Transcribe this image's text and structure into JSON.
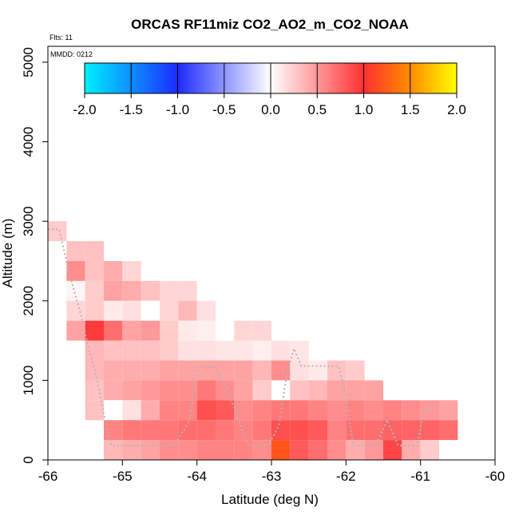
{
  "chart_data": {
    "type": "heatmap",
    "title": "ORCAS RF11miz CO2_AO2_m_CO2_NOAA",
    "flights_label": "Flts: 11",
    "date_label": "MMDD: 0212",
    "xlabel": "Latitude (deg N)",
    "ylabel": "Altitude (m)",
    "xlim": [
      -66,
      -60
    ],
    "ylim": [
      0,
      5200
    ],
    "xticks": [
      -66,
      -65,
      -64,
      -63,
      -62,
      -61,
      -60
    ],
    "yticks": [
      0,
      1000,
      2000,
      3000,
      4000,
      5000
    ],
    "colorbar": {
      "range": [
        -2.0,
        2.0
      ],
      "ticks": [
        "-2.0",
        "-1.5",
        "-1.0",
        "-0.5",
        "0.0",
        "0.5",
        "1.0",
        "1.5",
        "2.0"
      ],
      "stops": [
        {
          "v": -2.0,
          "color": "#00f0ff"
        },
        {
          "v": -1.0,
          "color": "#1c2bff"
        },
        {
          "v": 0.0,
          "color": "#ffffff"
        },
        {
          "v": 1.0,
          "color": "#ff3030"
        },
        {
          "v": 1.5,
          "color": "#ff8c00"
        },
        {
          "v": 2.0,
          "color": "#ffff00"
        }
      ]
    },
    "cell_size": {
      "lat": 0.25,
      "alt": 250
    },
    "rows": [
      {
        "alt": 2750,
        "lat_start": -66.0,
        "values": [
          0.25
        ]
      },
      {
        "alt": 2500,
        "lat_start": -65.75,
        "values": [
          0.3,
          0.3
        ]
      },
      {
        "alt": 2250,
        "lat_start": -65.75,
        "values": [
          0.55,
          0.3,
          0.4,
          0.2
        ]
      },
      {
        "alt": 2000,
        "lat_start": -65.75,
        "values": [
          0.05,
          0.25,
          0.45,
          0.4,
          0.3,
          0.2,
          0.2
        ]
      },
      {
        "alt": 1750,
        "lat_start": -65.75,
        "values": [
          0.2,
          0.25,
          0.1,
          0.15,
          0.0,
          0.2,
          0.35,
          0.15
        ]
      },
      {
        "alt": 1500,
        "lat_start": -65.75,
        "values": [
          0.45,
          0.95,
          0.7,
          0.45,
          0.5,
          0.25,
          0.1,
          0.08,
          0.0,
          0.2,
          0.2
        ]
      },
      {
        "alt": 1250,
        "lat_start": -65.5,
        "values": [
          0.35,
          0.3,
          0.3,
          0.3,
          0.25,
          0.15,
          0.15,
          0.12,
          0.12,
          0.08,
          0.15,
          0.12
        ]
      },
      {
        "alt": 1000,
        "lat_start": -65.5,
        "values": [
          0.35,
          0.4,
          0.4,
          0.4,
          0.45,
          0.45,
          0.45,
          0.45,
          0.45,
          0.35,
          0.55,
          0.15,
          0.1,
          0.3,
          0.25
        ]
      },
      {
        "alt": 750,
        "lat_start": -65.5,
        "values": [
          0.3,
          0.4,
          0.45,
          0.5,
          0.55,
          0.55,
          0.65,
          0.55,
          0.45,
          0.25,
          0.0,
          0.3,
          0.35,
          0.45,
          0.45,
          0.45
        ]
      },
      {
        "alt": 500,
        "lat_start": -65.5,
        "values": [
          0.3,
          0.0,
          0.15,
          0.4,
          0.6,
          0.6,
          0.85,
          0.8,
          0.55,
          0.6,
          0.65,
          0.65,
          0.6,
          0.55,
          0.6,
          0.55,
          0.6,
          0.55,
          0.5,
          0.45
        ]
      },
      {
        "alt": 250,
        "lat_start": -65.25,
        "values": [
          0.6,
          0.65,
          0.65,
          0.65,
          0.7,
          0.7,
          0.65,
          0.6,
          0.65,
          0.85,
          0.85,
          0.8,
          0.6,
          0.7,
          0.7,
          0.75,
          0.75,
          0.75,
          0.7
        ]
      },
      {
        "alt": 0,
        "lat_start": -65.25,
        "values": [
          0.35,
          0.4,
          0.45,
          0.55,
          0.55,
          0.6,
          0.6,
          0.6,
          0.55,
          1.2,
          0.8,
          0.7,
          0.55,
          0.4,
          0.5,
          0.9,
          0.4,
          0.25
        ]
      }
    ],
    "flight_track": [
      [
        -66.0,
        2900
      ],
      [
        -65.85,
        2900
      ],
      [
        -65.7,
        2300
      ],
      [
        -65.55,
        1800
      ],
      [
        -65.45,
        1400
      ],
      [
        -65.35,
        1050
      ],
      [
        -65.25,
        580
      ],
      [
        -65.15,
        180
      ],
      [
        -64.85,
        180
      ],
      [
        -64.55,
        180
      ],
      [
        -64.3,
        180
      ],
      [
        -64.1,
        500
      ],
      [
        -64.0,
        1170
      ],
      [
        -63.9,
        1170
      ],
      [
        -63.75,
        1170
      ],
      [
        -63.6,
        900
      ],
      [
        -63.4,
        400
      ],
      [
        -63.3,
        180
      ],
      [
        -63.05,
        180
      ],
      [
        -62.9,
        430
      ],
      [
        -62.8,
        1050
      ],
      [
        -62.7,
        1400
      ],
      [
        -62.6,
        1180
      ],
      [
        -62.35,
        1180
      ],
      [
        -62.1,
        1180
      ],
      [
        -62.0,
        800
      ],
      [
        -61.9,
        180
      ],
      [
        -61.6,
        180
      ],
      [
        -61.45,
        500
      ],
      [
        -61.3,
        180
      ],
      [
        -61.05,
        180
      ],
      [
        -60.95,
        620
      ],
      [
        -60.8,
        620
      ]
    ]
  }
}
